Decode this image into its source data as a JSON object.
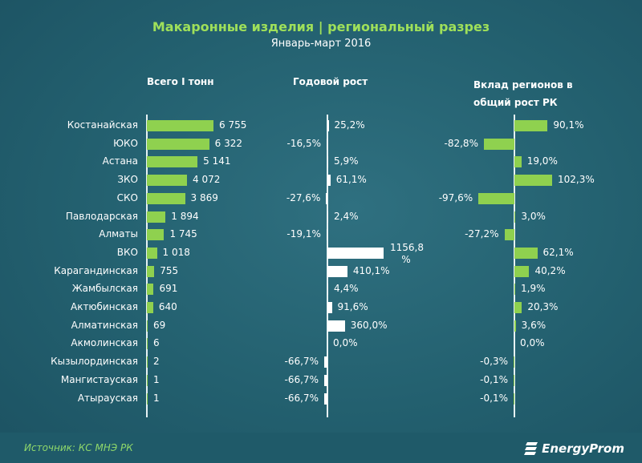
{
  "chart_data": {
    "type": "bar",
    "title": "Макаронные изделия | региональный разрез",
    "subtitle": "Январь-март 2016",
    "columns": [
      "Всего I тонн",
      "Годовой рост",
      "Вклад регионов в общий рост РК"
    ],
    "categories": [
      "Костанайская",
      "ЮКО",
      "Астана",
      "ЗКО",
      "СКО",
      "Павлодарская",
      "Алматы",
      "ВКО",
      "Карагандинская",
      "Жамбылская",
      "Актюбинская",
      "Алматинская",
      "Акмолинская",
      "Кызылординская",
      "Мангистауская",
      "Атырауская"
    ],
    "series": [
      {
        "name": "Всего I тонн",
        "values": [
          6755,
          6322,
          5141,
          4072,
          3869,
          1894,
          1745,
          1018,
          755,
          691,
          640,
          69,
          6,
          2,
          1,
          1
        ],
        "labels": [
          "6 755",
          "6 322",
          "5 141",
          "4 072",
          "3 869",
          "1 894",
          "1 745",
          "1 018",
          "755",
          "691",
          "640",
          "69",
          "6",
          "2",
          "1",
          "1"
        ],
        "color": "#8fd14f"
      },
      {
        "name": "Годовой рост",
        "values": [
          25.2,
          -16.5,
          5.9,
          61.1,
          -27.6,
          2.4,
          -19.1,
          1156.8,
          410.1,
          4.4,
          91.6,
          360.0,
          0.0,
          -66.7,
          -66.7,
          -66.7
        ],
        "labels": [
          "25,2%",
          "-16,5%",
          "5,9%",
          "61,1%",
          "-27,6%",
          "2,4%",
          "-19,1%",
          "1156,8 %",
          "410,1%",
          "4,4%",
          "91,6%",
          "360,0%",
          "0,0%",
          "-66,7%",
          "-66,7%",
          "-66,7%"
        ],
        "color": "#ffffff"
      },
      {
        "name": "Вклад регионов в общий рост РК",
        "values": [
          90.1,
          -82.8,
          19.0,
          102.3,
          -97.6,
          3.0,
          -27.2,
          62.1,
          40.2,
          1.9,
          20.3,
          3.6,
          0.0,
          -0.3,
          -0.1,
          -0.1
        ],
        "labels": [
          "90,1%",
          "-82,8%",
          "19,0%",
          "102,3%",
          "-97,6%",
          "3,0%",
          "-27,2%",
          "62,1%",
          "40,2%",
          "1,9%",
          "20,3%",
          "3,6%",
          "0,0%",
          "-0,3%",
          "-0,1%",
          "-0,1%"
        ],
        "color": "#8fd14f"
      }
    ]
  },
  "footer": {
    "source": "Источник: КС МНЭ РК",
    "brand": "EnergyProm"
  }
}
